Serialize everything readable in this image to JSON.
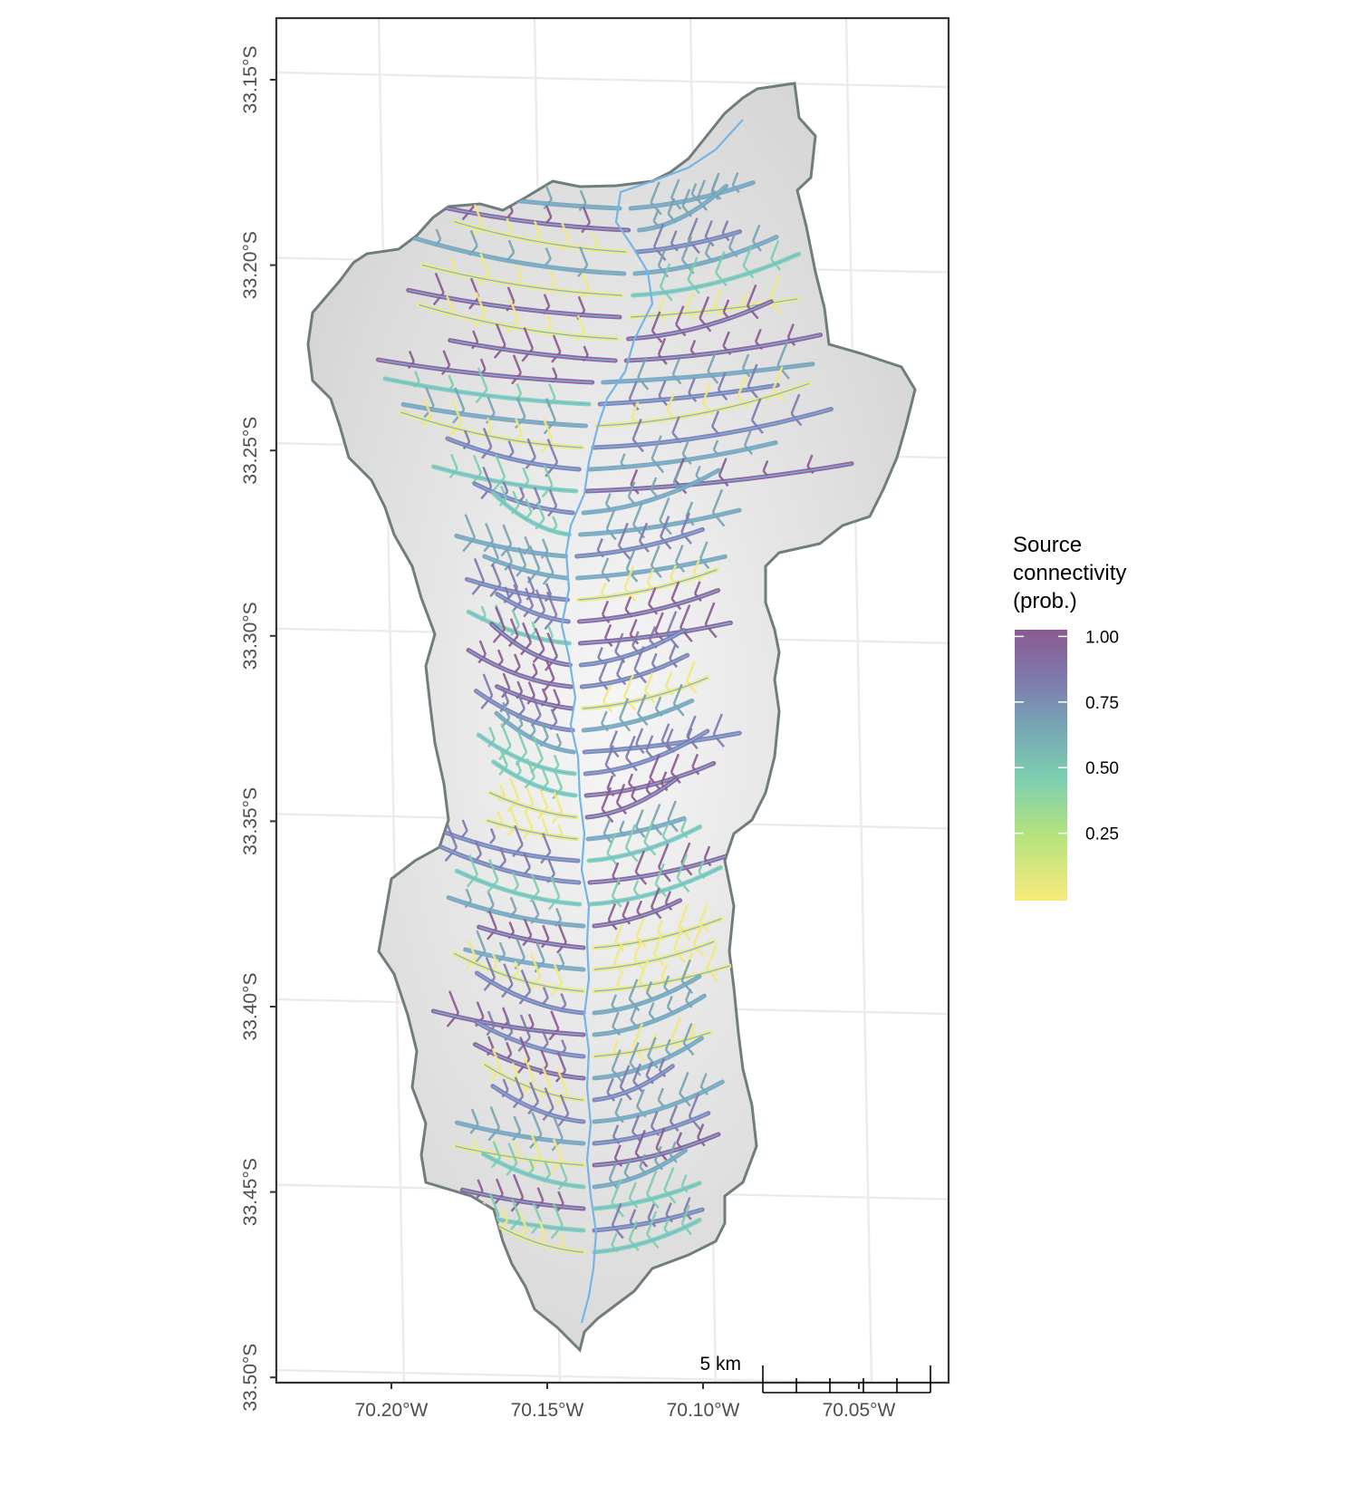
{
  "map": {
    "x_ticks": [
      "70.20°W",
      "70.15°W",
      "70.10°W",
      "70.05°W"
    ],
    "y_ticks": [
      "33.15°S",
      "33.20°S",
      "33.25°S",
      "33.30°S",
      "33.35°S",
      "33.40°S",
      "33.45°S",
      "33.50°S"
    ],
    "x_tick_values": [
      -70.2,
      -70.15,
      -70.1,
      -70.05
    ],
    "y_tick_values": [
      -33.15,
      -33.2,
      -33.25,
      -33.3,
      -33.35,
      -33.4,
      -33.45,
      -33.5
    ],
    "scale_bar": {
      "label": "5 km",
      "segments": 5
    }
  },
  "legend": {
    "title_lines": [
      "Source",
      "connectivity",
      "(prob.)"
    ],
    "labels": [
      "1.00",
      "0.75",
      "0.50",
      "0.25"
    ],
    "values": [
      1.0,
      0.75,
      0.5,
      0.25
    ],
    "colors": {
      "high": "#8a5a91",
      "upper": "#7e79ae",
      "mid": "#77a3b3",
      "lower": "#7ccfb0",
      "low": "#f3e97c"
    }
  },
  "colors": {
    "river": "#74b4e6",
    "outline": "#707d7d",
    "grid": "#ebebeb",
    "hillshade": "#e8e8e8"
  }
}
